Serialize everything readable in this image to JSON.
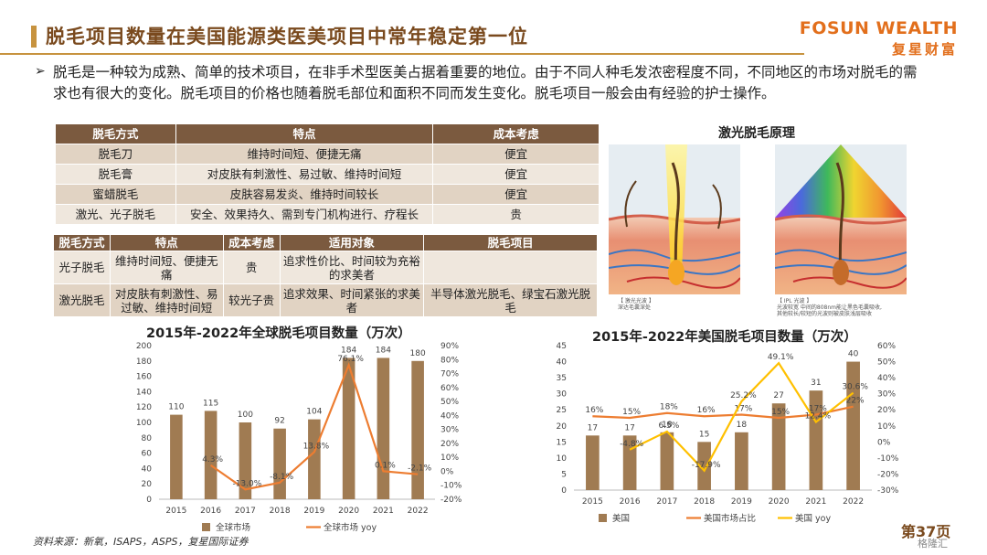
{
  "header": {
    "title": "脱毛项目数量在美国能源类医美项目中常年稳定第一位",
    "brand_en": "FOSUN WEALTH",
    "brand_cn": "复星财富"
  },
  "intro": {
    "bullet": "➢",
    "text": "脱毛是一种较为成熟、简单的技术项目，在非手术型医美占据着重要的地位。由于不同人种毛发浓密程度不同，不同地区的市场对脱毛的需求也有很大的变化。脱毛项目的价格也随着脱毛部位和面积不同而发生变化。脱毛项目一般会由有经验的护士操作。"
  },
  "table1": {
    "headers": [
      "脱毛方式",
      "特点",
      "成本考虑"
    ],
    "rows": [
      [
        "脱毛刀",
        "维持时间短、便捷无痛",
        "便宜"
      ],
      [
        "脱毛膏",
        "对皮肤有刺激性、易过敏、维持时间短",
        "便宜"
      ],
      [
        "蜜蜡脱毛",
        "皮肤容易发炎、维持时间较长",
        "便宜"
      ],
      [
        "激光、光子脱毛",
        "安全、效果持久、需到专门机构进行、疗程长",
        "贵"
      ]
    ]
  },
  "table2": {
    "headers": [
      "脱毛方式",
      "特点",
      "成本考虑",
      "适用对象",
      "脱毛项目"
    ],
    "rows": [
      [
        "光子脱毛",
        "维持时间短、便捷无痛",
        "贵",
        "追求性价比、时间较为充裕的求美者",
        ""
      ],
      [
        "激光脱毛",
        "对皮肤有刺激性、易过敏、维持时间短",
        "较光子贵",
        "追求效果、时间紧张的求美者",
        "半导体激光脱毛、绿宝石激光脱毛"
      ]
    ]
  },
  "laser": {
    "title": "激光脱毛原理",
    "caption_left_1": "【 激光光波 】",
    "caption_left_2": "深达毛囊深处",
    "caption_right_1": "【 IPL 光波 】",
    "caption_right_2": "光波较宽  中间的808nm能让黑色毛囊吸收,",
    "caption_right_3": "其他较长/较短的光波则被皮肤浅层吸收"
  },
  "chart_data": [
    {
      "type": "bar",
      "title": "2015年-2022年全球脱毛项目数量（万次）",
      "categories": [
        "2015",
        "2016",
        "2017",
        "2018",
        "2019",
        "2020",
        "2021",
        "2022"
      ],
      "series": [
        {
          "name": "全球市场",
          "type": "bar",
          "axis": "left",
          "values": [
            110,
            115,
            100,
            92,
            104,
            184,
            184,
            180
          ],
          "labels": [
            "110",
            "115",
            "100",
            "92",
            "104",
            "184",
            "184",
            "180"
          ],
          "color": "#a07b52"
        },
        {
          "name": "全球市场 yoy",
          "type": "line",
          "axis": "right",
          "values": [
            null,
            4.3,
            -13.0,
            -8.1,
            13.8,
            76.1,
            0.1,
            -2.1
          ],
          "labels": [
            "",
            "4.3%",
            "-13.0%",
            "-8.1%",
            "13.8%",
            "76.1%",
            "0.1%",
            "-2.1%"
          ],
          "color": "#ed7d31"
        }
      ],
      "yticks_left": [
        "0",
        "20",
        "40",
        "60",
        "80",
        "100",
        "120",
        "140",
        "160",
        "180",
        "200"
      ],
      "ylim_left": [
        0,
        200
      ],
      "yticks_right": [
        "-20%",
        "-10%",
        "0%",
        "10%",
        "20%",
        "30%",
        "40%",
        "50%",
        "60%",
        "70%",
        "80%",
        "90%"
      ],
      "ylim_right": [
        -20,
        90
      ],
      "legend": "bottom"
    },
    {
      "type": "bar",
      "title": "2015年-2022年美国脱毛项目数量（万次）",
      "categories": [
        "2015",
        "2016",
        "2017",
        "2018",
        "2019",
        "2020",
        "2021",
        "2022"
      ],
      "series": [
        {
          "name": "美国",
          "type": "bar",
          "axis": "left",
          "values": [
            17,
            17,
            18,
            15,
            18,
            27,
            31,
            40
          ],
          "labels": [
            "17",
            "17",
            "18",
            "15",
            "18",
            "27",
            "31",
            "40"
          ],
          "color": "#a07b52"
        },
        {
          "name": "美国市场占比",
          "type": "line",
          "axis": "right",
          "values": [
            16,
            15,
            18,
            16,
            17,
            15,
            17,
            22
          ],
          "labels": [
            "16%",
            "15%",
            "18%",
            "16%",
            "17%",
            "15%",
            "17%",
            "22%"
          ],
          "color": "#ed7d31"
        },
        {
          "name": "美国 yoy",
          "type": "line",
          "axis": "right",
          "values": [
            null,
            -4.8,
            6.5,
            -17.9,
            25.2,
            49.1,
            12.4,
            30.6
          ],
          "labels": [
            "",
            "-4.8%",
            "6.5%",
            "-17.9%",
            "25.2%",
            "49.1%",
            "12.4%",
            "30.6%"
          ],
          "color": "#ffc000"
        }
      ],
      "yticks_left": [
        "0",
        "5",
        "10",
        "15",
        "20",
        "25",
        "30",
        "35",
        "40",
        "45"
      ],
      "ylim_left": [
        0,
        45
      ],
      "yticks_right": [
        "-30%",
        "-20%",
        "-10%",
        "0%",
        "10%",
        "20%",
        "30%",
        "40%",
        "50%",
        "60%"
      ],
      "ylim_right": [
        -30,
        60
      ],
      "legend": "bottom"
    }
  ],
  "footer": {
    "source": "资料来源：新氧，ISAPS，ASPS，复星国际证券",
    "page": "第37页",
    "watermark": "格隆汇"
  }
}
